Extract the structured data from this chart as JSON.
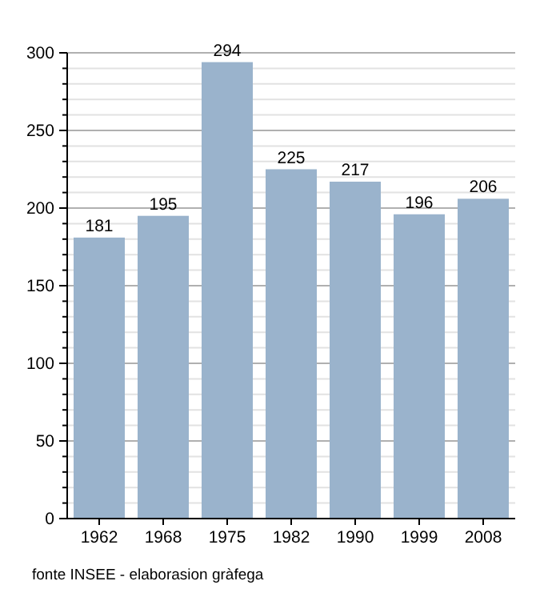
{
  "chart_data": {
    "type": "bar",
    "categories": [
      "1962",
      "1968",
      "1975",
      "1982",
      "1990",
      "1999",
      "2008"
    ],
    "values": [
      181,
      195,
      294,
      225,
      217,
      196,
      206
    ],
    "color": "#9ab3cc",
    "data_labels": true,
    "ylim": [
      0,
      300
    ],
    "yticks": [
      0,
      {
        "value": 10,
        "label": null
      },
      {
        "value": 20,
        "label": null
      },
      {
        "value": 30,
        "label": null
      },
      {
        "value": 40,
        "label": null
      },
      50,
      {
        "value": 60,
        "label": null
      },
      {
        "value": 70,
        "label": null
      },
      {
        "value": 80,
        "label": null
      },
      {
        "value": 90,
        "label": null
      },
      100,
      {
        "value": 110,
        "label": null
      },
      {
        "value": 120,
        "label": null
      },
      {
        "value": 130,
        "label": null
      },
      {
        "value": 140,
        "label": null
      },
      150,
      {
        "value": 160,
        "label": null
      },
      {
        "value": 170,
        "label": null
      },
      {
        "value": 180,
        "label": null
      },
      {
        "value": 190,
        "label": null
      },
      200,
      {
        "value": 210,
        "label": null
      },
      {
        "value": 220,
        "label": null
      },
      {
        "value": 230,
        "label": null
      },
      {
        "value": 240,
        "label": null
      },
      250,
      {
        "value": 260,
        "label": null
      },
      {
        "value": 270,
        "label": null
      },
      {
        "value": 280,
        "label": null
      },
      {
        "value": 290,
        "label": null
      },
      300
    ],
    "grid": "y",
    "annotations": [
      "fonte INSEE - elaborasion gràfega"
    ]
  }
}
